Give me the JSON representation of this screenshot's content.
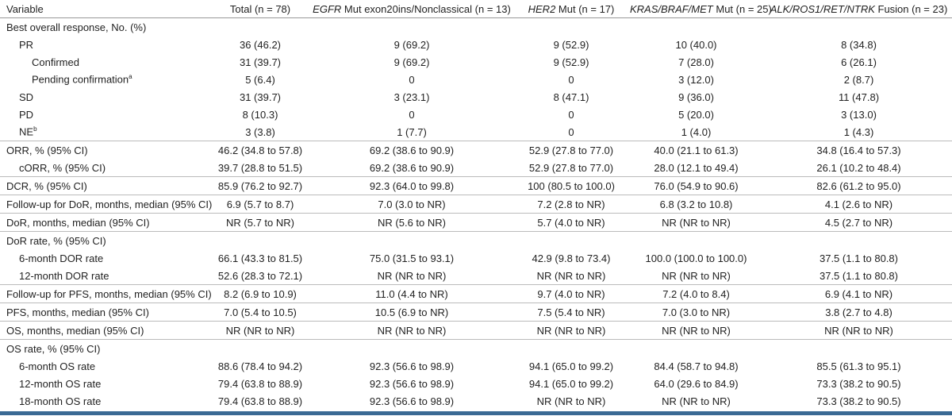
{
  "table": {
    "header": [
      "Variable",
      "Total (n = 78)",
      {
        "italic": "EGFR",
        "text": " Mut exon20ins/Nonclassical (n = 13)"
      },
      {
        "italic": "HER2",
        "text": " Mut (n = 17)"
      },
      {
        "italic": "KRAS/BRAF/MET",
        "text": " Mut (n = 25)"
      },
      {
        "italic": "ALK/ROS1/RET/NTRK",
        "text": " Fusion (n = 23)"
      }
    ],
    "rows": [
      [
        "Best overall response, No. (%)"
      ],
      [
        "PR",
        "36 (46.2)",
        "9 (69.2)",
        "9 (52.9)",
        "10 (40.0)",
        "8 (34.8)"
      ],
      [
        "Confirmed",
        "31 (39.7)",
        "9 (69.2)",
        "9 (52.9)",
        "7 (28.0)",
        "6 (26.1)"
      ],
      [
        {
          "text": "Pending confirmation",
          "sup": "a"
        },
        "5 (6.4)",
        "0",
        "0",
        "3 (12.0)",
        "2 (8.7)"
      ],
      [
        "SD",
        "31 (39.7)",
        "3 (23.1)",
        "8 (47.1)",
        "9 (36.0)",
        "11 (47.8)"
      ],
      [
        "PD",
        "8 (10.3)",
        "0",
        "0",
        "5 (20.0)",
        "3 (13.0)"
      ],
      [
        {
          "text": "NE",
          "sup": "b"
        },
        "3 (3.8)",
        "1 (7.7)",
        "0",
        "1 (4.0)",
        "1 (4.3)"
      ],
      [
        "ORR, % (95% CI)",
        "46.2 (34.8 to 57.8)",
        "69.2 (38.6 to 90.9)",
        "52.9 (27.8 to 77.0)",
        "40.0 (21.1 to 61.3)",
        "34.8 (16.4 to 57.3)"
      ],
      [
        "cORR, % (95% CI)",
        "39.7 (28.8 to 51.5)",
        "69.2 (38.6 to 90.9)",
        "52.9 (27.8 to 77.0)",
        "28.0 (12.1 to 49.4)",
        "26.1 (10.2 to 48.4)"
      ],
      [
        "DCR, % (95% CI)",
        "85.9 (76.2 to 92.7)",
        "92.3 (64.0 to 99.8)",
        "100 (80.5 to 100.0)",
        "76.0 (54.9 to 90.6)",
        "82.6 (61.2 to 95.0)"
      ],
      [
        "Follow-up for DoR, months, median (95% CI)",
        "6.9 (5.7 to 8.7)",
        "7.0 (3.0 to NR)",
        "7.2 (2.8 to NR)",
        "6.8 (3.2 to 10.8)",
        "4.1 (2.6 to NR)"
      ],
      [
        "DoR, months, median (95% CI)",
        "NR (5.7 to NR)",
        "NR (5.6 to NR)",
        "5.7 (4.0 to NR)",
        "NR (NR to NR)",
        "4.5 (2.7 to NR)"
      ],
      [
        "DoR rate, % (95% CI)"
      ],
      [
        "6-month DOR rate",
        "66.1 (43.3 to 81.5)",
        "75.0 (31.5 to 93.1)",
        "42.9 (9.8 to 73.4)",
        "100.0 (100.0 to 100.0)",
        "37.5 (1.1 to 80.8)"
      ],
      [
        "12-month DOR rate",
        "52.6 (28.3 to 72.1)",
        "NR (NR to NR)",
        "NR (NR to NR)",
        "NR (NR to NR)",
        "37.5 (1.1 to 80.8)"
      ],
      [
        "Follow-up for PFS, months, median (95% CI)",
        "8.2 (6.9 to 10.9)",
        "11.0 (4.4 to NR)",
        "9.7 (4.0 to NR)",
        "7.2 (4.0 to 8.4)",
        "6.9 (4.1 to NR)"
      ],
      [
        "PFS, months, median (95% CI)",
        "7.0 (5.4 to 10.5)",
        "10.5 (6.9 to NR)",
        "7.5 (5.4 to NR)",
        "7.0 (3.0 to NR)",
        "3.8 (2.7 to 4.8)"
      ],
      [
        "OS, months, median (95% CI)",
        "NR (NR to NR)",
        "NR (NR to NR)",
        "NR (NR to NR)",
        "NR (NR to NR)",
        "NR (NR to NR)"
      ],
      [
        "OS rate, % (95% CI)"
      ],
      [
        "6-month OS rate",
        "88.6 (78.4 to 94.2)",
        "92.3 (56.6 to 98.9)",
        "94.1 (65.0 to 99.2)",
        "84.4 (58.7 to 94.8)",
        "85.5 (61.3 to 95.1)"
      ],
      [
        "12-month OS rate",
        "79.4 (63.8 to 88.9)",
        "92.3 (56.6 to 98.9)",
        "94.1 (65.0 to 99.2)",
        "64.0 (29.6 to 84.9)",
        "73.3 (38.2 to 90.5)"
      ],
      [
        "18-month OS rate",
        "79.4 (63.8 to 88.9)",
        "92.3 (56.6 to 98.9)",
        "NR (NR to NR)",
        "NR (NR to NR)",
        "73.3 (38.2 to 90.5)"
      ]
    ]
  }
}
